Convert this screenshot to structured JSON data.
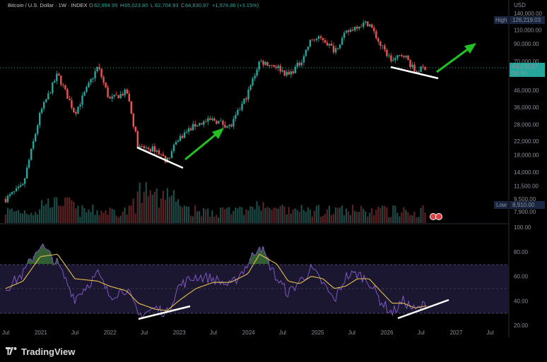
{
  "header": {
    "symbol": "Bitcoin / U.S. Dollar · 1W · INDEX",
    "o_label": "O",
    "o_value": "62,994.95",
    "h_label": "H",
    "h_value": "65,023.80",
    "l_label": "L",
    "l_value": "62,704.93",
    "c_label": "C",
    "c_value": "64,830.97",
    "change": "+1,978.86 (+3.15%)"
  },
  "price_axis": {
    "currency": "USD",
    "ticks": [
      "140,000.00",
      "110,000.00",
      "90,000.00",
      "70,000.00",
      "46,000.00",
      "36,000.00",
      "28,000.00",
      "22,000.00",
      "18,000.00",
      "14,000.00",
      "11,500.00",
      "9,500.00",
      "7,900.00"
    ],
    "high_label": "High",
    "high_value": "126,219.03",
    "low_label": "Low",
    "low_value": "8,910.00",
    "last_price": "64,830.97",
    "countdown": "5d 9h"
  },
  "rsi_axis": {
    "ticks": [
      "100.00",
      "80.00",
      "60.00",
      "40.00",
      "20.00"
    ]
  },
  "time_axis": [
    "Jul",
    "2021",
    "Jul",
    "2022",
    "Jul",
    "2023",
    "Jul",
    "2024",
    "Jul",
    "2025",
    "Jul",
    "2026",
    "Jul",
    "2027",
    "Jul"
  ],
  "branding": {
    "name": "TradingView"
  },
  "colors": {
    "up": "#26a69a",
    "down": "#ef5350",
    "rsi_line": "#7e57c2",
    "rsi_ma": "#e5c04c",
    "arrow": "#22c222",
    "trendline": "#ffffff",
    "background": "#000000"
  },
  "chart_data": [
    {
      "type": "candlestick",
      "title": "Bitcoin / U.S. Dollar · 1W · INDEX",
      "y_scale": "log",
      "ylim": [
        7900,
        140000
      ],
      "xlim": [
        "2020-07",
        "2027-09"
      ],
      "last_close": 64830.97,
      "high": 126219.03,
      "low": 8910.0,
      "series": [
        {
          "name": "price",
          "x": [
            "2020-07",
            "2020-10",
            "2021-01",
            "2021-04",
            "2021-07",
            "2021-11",
            "2022-01",
            "2022-04",
            "2022-06",
            "2022-09",
            "2022-11",
            "2023-01",
            "2023-04",
            "2023-07",
            "2023-10",
            "2024-01",
            "2024-03",
            "2024-06",
            "2024-08",
            "2024-10",
            "2024-12",
            "2025-02",
            "2025-04",
            "2025-06",
            "2025-08",
            "2025-10",
            "2025-12",
            "2026-02",
            "2026-04",
            "2026-06",
            "2026-08"
          ],
          "y": [
            9500,
            11500,
            33000,
            58000,
            33000,
            65000,
            40000,
            45000,
            20000,
            19500,
            16500,
            23000,
            28000,
            30000,
            27000,
            44000,
            70000,
            65000,
            57000,
            68000,
            96000,
            97000,
            82000,
            105000,
            118000,
            122000,
            88000,
            70000,
            78000,
            60000,
            64830
          ]
        }
      ]
    },
    {
      "type": "line",
      "title": "RSI",
      "ylim": [
        20,
        100
      ],
      "series": [
        {
          "name": "RSI",
          "x": [
            "2020-07",
            "2020-10",
            "2021-01",
            "2021-04",
            "2021-07",
            "2021-11",
            "2022-01",
            "2022-04",
            "2022-06",
            "2022-09",
            "2022-11",
            "2023-01",
            "2023-04",
            "2023-07",
            "2023-10",
            "2024-01",
            "2024-03",
            "2024-06",
            "2024-08",
            "2024-10",
            "2024-12",
            "2025-02",
            "2025-04",
            "2025-06",
            "2025-08",
            "2025-10",
            "2025-12",
            "2026-02",
            "2026-04",
            "2026-06",
            "2026-08"
          ],
          "y": [
            50,
            62,
            86,
            70,
            42,
            62,
            44,
            50,
            28,
            34,
            30,
            52,
            60,
            58,
            52,
            70,
            86,
            58,
            46,
            56,
            66,
            54,
            40,
            60,
            62,
            56,
            40,
            30,
            40,
            32,
            38
          ]
        },
        {
          "name": "RSI-based MA",
          "x": [
            "2020-07",
            "2020-10",
            "2021-01",
            "2021-04",
            "2021-07",
            "2021-11",
            "2022-01",
            "2022-04",
            "2022-06",
            "2022-09",
            "2022-11",
            "2023-01",
            "2023-04",
            "2023-07",
            "2023-10",
            "2024-01",
            "2024-03",
            "2024-06",
            "2024-08",
            "2024-10",
            "2024-12",
            "2025-02",
            "2025-04",
            "2025-06",
            "2025-08",
            "2025-10",
            "2025-12",
            "2026-02",
            "2026-04",
            "2026-06",
            "2026-08"
          ],
          "y": [
            50,
            56,
            76,
            78,
            58,
            56,
            52,
            48,
            38,
            33,
            32,
            40,
            50,
            55,
            55,
            62,
            78,
            70,
            56,
            54,
            60,
            58,
            50,
            52,
            58,
            58,
            48,
            38,
            38,
            34,
            36
          ]
        }
      ]
    }
  ]
}
